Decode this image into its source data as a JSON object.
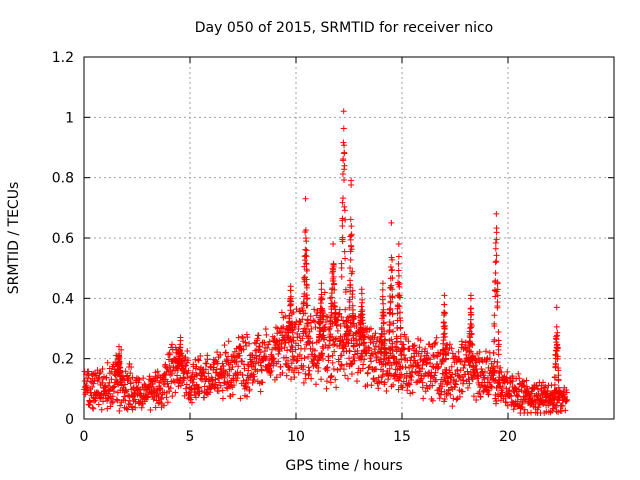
{
  "chart_data": {
    "type": "scatter",
    "title": "Day 050 of 2015, SRMTID for receiver nico",
    "xlabel": "GPS time / hours",
    "ylabel": "SRMTID / TECUs",
    "xlim": [
      0,
      25
    ],
    "ylim": [
      0,
      1.2
    ],
    "xticks": [
      0,
      5,
      10,
      15,
      20
    ],
    "yticks": [
      0,
      0.2,
      0.4,
      0.6,
      0.8,
      1,
      1.2
    ],
    "xtick_labels": [
      "0",
      "5",
      "10",
      "15",
      "20"
    ],
    "ytick_labels": [
      "0",
      "0.2",
      "0.4",
      "0.6",
      "0.8",
      "1",
      "1.2"
    ],
    "grid": true,
    "marker": "plus",
    "series": [
      {
        "name": "SRMTID",
        "color": "#ff0000",
        "envelope": [
          {
            "x": 0.0,
            "base": 0.11,
            "spread": 0.07
          },
          {
            "x": 1.0,
            "base": 0.1,
            "spread": 0.07
          },
          {
            "x": 1.7,
            "base": 0.12,
            "spread": 0.11
          },
          {
            "x": 2.5,
            "base": 0.09,
            "spread": 0.06
          },
          {
            "x": 3.5,
            "base": 0.1,
            "spread": 0.07
          },
          {
            "x": 4.3,
            "base": 0.17,
            "spread": 0.1
          },
          {
            "x": 5.0,
            "base": 0.13,
            "spread": 0.08
          },
          {
            "x": 6.0,
            "base": 0.14,
            "spread": 0.08
          },
          {
            "x": 7.0,
            "base": 0.17,
            "spread": 0.11
          },
          {
            "x": 8.0,
            "base": 0.19,
            "spread": 0.11
          },
          {
            "x": 9.0,
            "base": 0.21,
            "spread": 0.09
          },
          {
            "x": 9.7,
            "base": 0.27,
            "spread": 0.16
          },
          {
            "x": 10.5,
            "base": 0.25,
            "spread": 0.14
          },
          {
            "x": 11.5,
            "base": 0.26,
            "spread": 0.16
          },
          {
            "x": 12.3,
            "base": 0.25,
            "spread": 0.15
          },
          {
            "x": 13.0,
            "base": 0.23,
            "spread": 0.11
          },
          {
            "x": 13.7,
            "base": 0.2,
            "spread": 0.1
          },
          {
            "x": 14.5,
            "base": 0.17,
            "spread": 0.1
          },
          {
            "x": 15.0,
            "base": 0.19,
            "spread": 0.1
          },
          {
            "x": 16.0,
            "base": 0.17,
            "spread": 0.1
          },
          {
            "x": 17.0,
            "base": 0.15,
            "spread": 0.11
          },
          {
            "x": 18.0,
            "base": 0.17,
            "spread": 0.1
          },
          {
            "x": 19.0,
            "base": 0.14,
            "spread": 0.09
          },
          {
            "x": 20.0,
            "base": 0.1,
            "spread": 0.07
          },
          {
            "x": 21.0,
            "base": 0.07,
            "spread": 0.06
          },
          {
            "x": 22.0,
            "base": 0.07,
            "spread": 0.05
          },
          {
            "x": 22.8,
            "base": 0.06,
            "spread": 0.04
          }
        ],
        "spikes": [
          {
            "x": 1.65,
            "peak": 0.24,
            "width": 0.08
          },
          {
            "x": 4.55,
            "peak": 0.27,
            "width": 0.15
          },
          {
            "x": 9.75,
            "peak": 0.44,
            "width": 0.12
          },
          {
            "x": 10.45,
            "peak": 0.73,
            "width": 0.14
          },
          {
            "x": 11.2,
            "peak": 0.45,
            "width": 0.12
          },
          {
            "x": 11.75,
            "peak": 0.58,
            "width": 0.15
          },
          {
            "x": 12.25,
            "peak": 1.02,
            "width": 0.16
          },
          {
            "x": 12.6,
            "peak": 0.79,
            "width": 0.12
          },
          {
            "x": 13.1,
            "peak": 0.43,
            "width": 0.12
          },
          {
            "x": 14.1,
            "peak": 0.45,
            "width": 0.1
          },
          {
            "x": 14.5,
            "peak": 0.65,
            "width": 0.14
          },
          {
            "x": 14.85,
            "peak": 0.58,
            "width": 0.12
          },
          {
            "x": 17.0,
            "peak": 0.41,
            "width": 0.1
          },
          {
            "x": 18.25,
            "peak": 0.41,
            "width": 0.12
          },
          {
            "x": 19.45,
            "peak": 0.68,
            "width": 0.16
          },
          {
            "x": 22.3,
            "peak": 0.37,
            "width": 0.12
          }
        ]
      }
    ]
  }
}
